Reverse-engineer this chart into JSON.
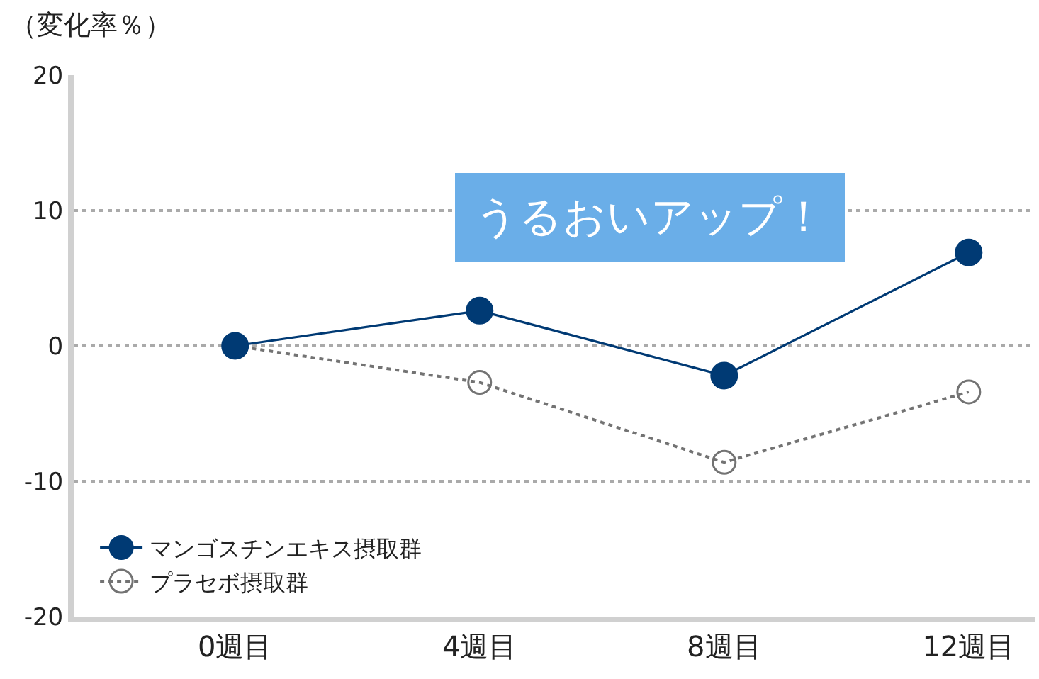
{
  "chart_data": {
    "type": "line",
    "ylabel": "（変化率％）",
    "categories": [
      "0週目",
      "4週目",
      "8週目",
      "12週目"
    ],
    "series": [
      {
        "name": "マンゴスチンエキス摂取群",
        "color": "#003a74",
        "values": [
          0,
          2.6,
          -2.2,
          6.9
        ],
        "line_style": "solid"
      },
      {
        "name": "プラセボ摂取群",
        "color": "#737373",
        "values": [
          0,
          -2.7,
          -8.6,
          -3.4
        ],
        "line_style": "dotted"
      }
    ],
    "ylim": [
      -20,
      20
    ],
    "yticks": [
      -20,
      -10,
      0,
      10,
      20
    ],
    "grid": "y",
    "legend": "bottom left",
    "marker": "circle",
    "annotations": [
      "うるおいアップ！"
    ]
  }
}
